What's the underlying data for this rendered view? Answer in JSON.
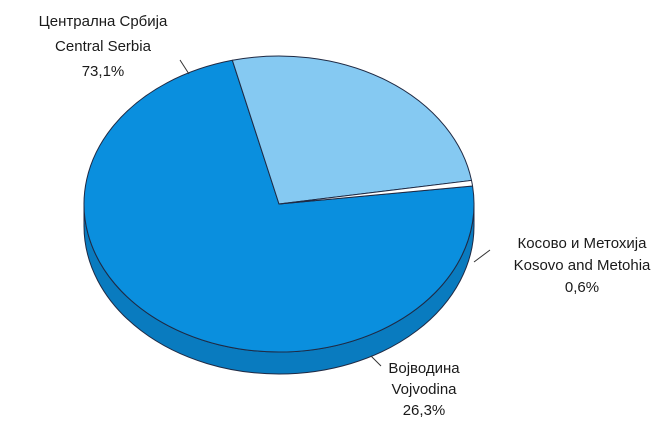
{
  "chart_data": {
    "type": "pie",
    "style": "3d",
    "slices": [
      {
        "label_sr": "Централна Србија",
        "label_en": "Central Serbia",
        "value": 73.1,
        "value_label": "73,1%",
        "color": "#0a8fde"
      },
      {
        "label_sr": "Војводина",
        "label_en": "Vojvodina",
        "value": 26.3,
        "value_label": "26,3%",
        "color": "#85c9f2"
      },
      {
        "label_sr": "Косово и Метохија",
        "label_en": "Kosovo and Metohia",
        "value": 0.6,
        "value_label": "0,6%",
        "color": "#ffffff"
      }
    ]
  }
}
